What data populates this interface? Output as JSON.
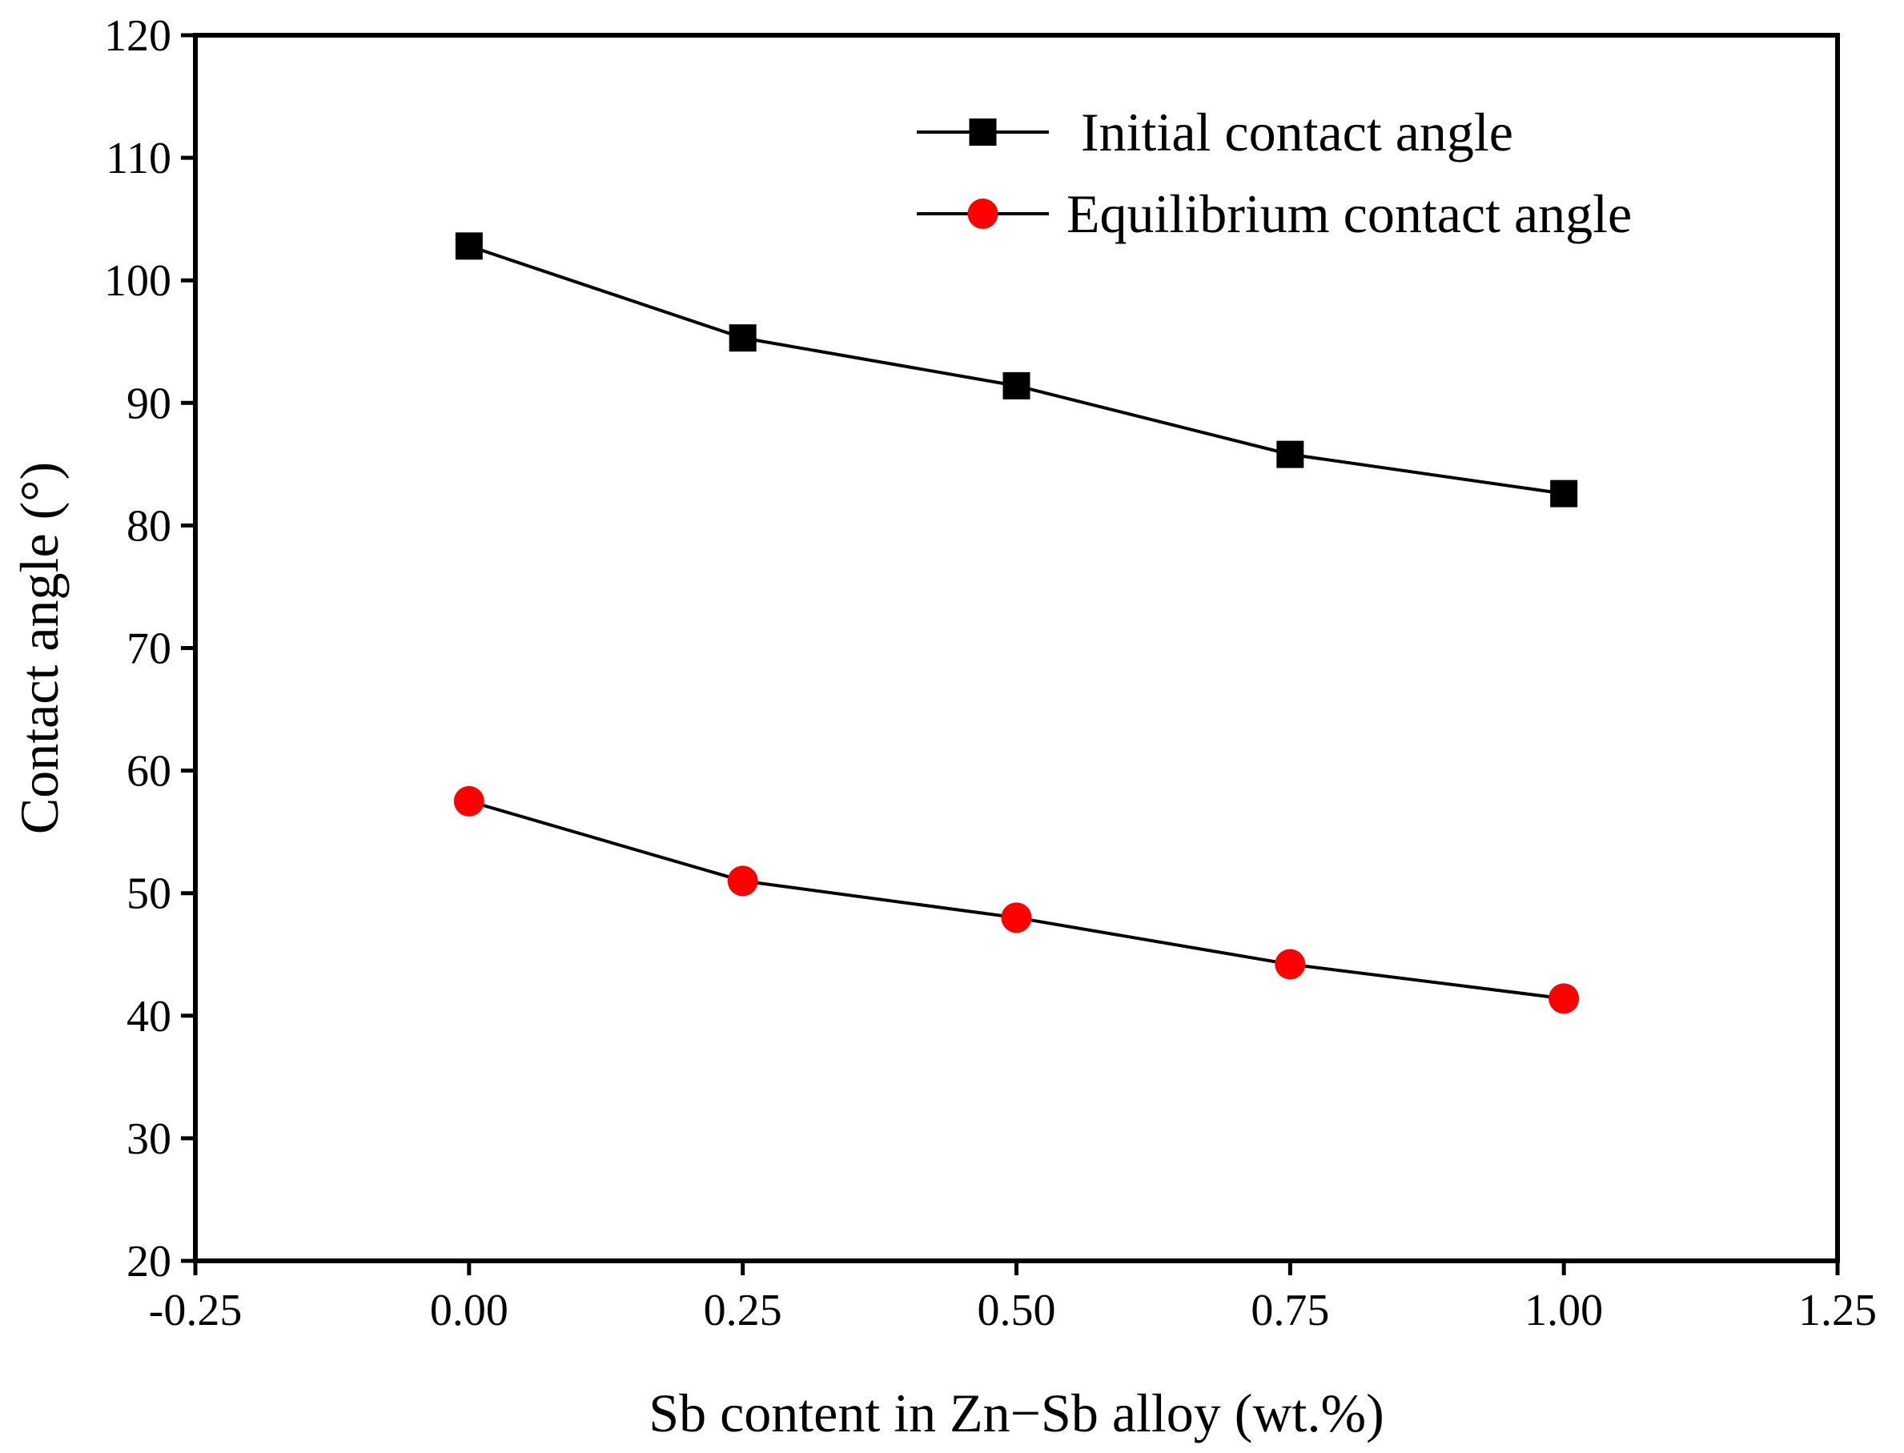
{
  "chart_data": {
    "type": "line",
    "title": "",
    "xlabel": "Sb content in Zn−Sb alloy (wt.%)",
    "ylabel": "Contact angle (°)",
    "xlim": [
      -0.25,
      1.25
    ],
    "ylim": [
      20,
      120
    ],
    "xticks": [
      -0.25,
      0.0,
      0.25,
      0.5,
      0.75,
      1.0,
      1.25
    ],
    "xtick_labels": [
      "-0.25",
      "0.00",
      "0.25",
      "0.50",
      "0.75",
      "1.00",
      "1.25"
    ],
    "yticks": [
      20,
      30,
      40,
      50,
      60,
      70,
      80,
      90,
      100,
      110,
      120
    ],
    "ytick_labels": [
      "20",
      "30",
      "40",
      "50",
      "60",
      "70",
      "80",
      "90",
      "100",
      "110",
      "120"
    ],
    "grid": false,
    "legend_position": "top-right",
    "x": [
      0.0,
      0.25,
      0.5,
      0.75,
      1.0
    ],
    "series": [
      {
        "name": "Initial contact angle",
        "marker": "square",
        "marker_color": "#000000",
        "line_color": "#000000",
        "values": [
          102.8,
          95.3,
          91.4,
          85.8,
          82.6
        ]
      },
      {
        "name": "Equilibrium contact angle",
        "marker": "circle",
        "marker_color": "#ff0000",
        "line_color": "#000000",
        "values": [
          57.5,
          51.0,
          48.0,
          44.2,
          41.4
        ]
      }
    ]
  }
}
